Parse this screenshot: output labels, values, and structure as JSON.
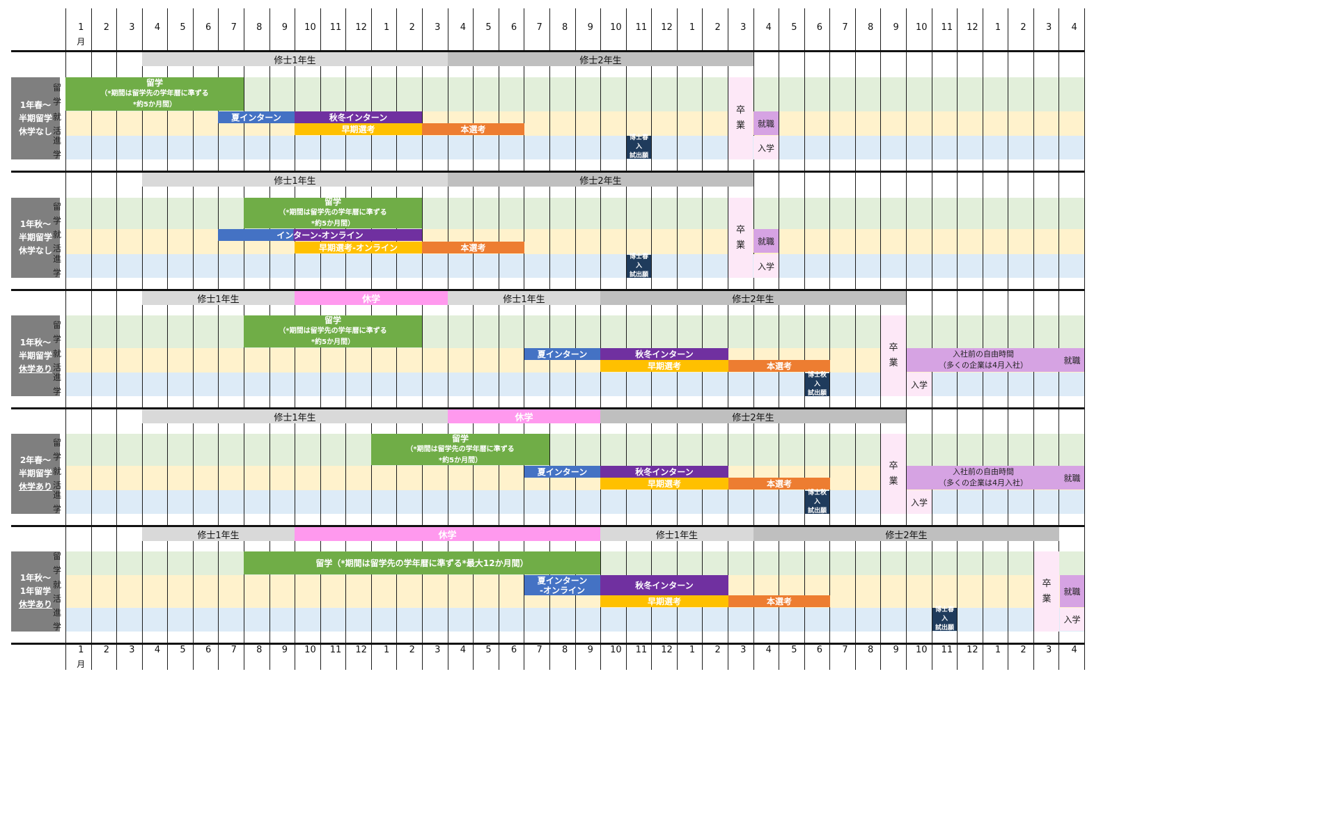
{
  "months": [
    "1",
    "2",
    "3",
    "4",
    "5",
    "6",
    "7",
    "8",
    "9",
    "10",
    "11",
    "12",
    "1",
    "2",
    "3",
    "4",
    "5",
    "6",
    "7",
    "8",
    "9",
    "10",
    "11",
    "12",
    "1",
    "2",
    "3",
    "4",
    "5",
    "6",
    "7",
    "8",
    "9",
    "10",
    "11",
    "12",
    "1",
    "2",
    "3",
    "4"
  ],
  "month_unit": "月",
  "categories": {
    "study_abroad": [
      "留",
      "学"
    ],
    "job_hunt": [
      "就",
      "活"
    ],
    "advance": [
      "進",
      "学"
    ]
  },
  "colors": {
    "study": "#70ad47",
    "summer_intern": "#4472c4",
    "autumn_intern": "#7030a0",
    "early_selection": "#ffc000",
    "main_selection": "#ed7d31",
    "doctoral_app": "#1f3b5c",
    "leave": "#ff99ee",
    "year_bar": "#d9d9d9",
    "year_bar_dark": "#bfbfbf",
    "band_green": "#e2efda",
    "band_yellow": "#fff2cc",
    "band_blue": "#ddebf7",
    "graduation": "#fde8f7",
    "employment": "#d6a3e3",
    "label_bg": "#7f7f7f"
  },
  "scenarios": [
    {
      "label": [
        "1年春～",
        "半期留学",
        "休学なし"
      ],
      "year_bars": [
        {
          "text": "修士1年生",
          "kind": "y"
        },
        {
          "text": "修士2年生",
          "kind": "y"
        }
      ],
      "study": {
        "title": "留学",
        "note1": "（*期間は留学先の学年暦に準ずる",
        "note2": "*約5か月間）"
      },
      "intern1": "夏インターン",
      "intern2": "秋冬インターン",
      "early": "早期選考",
      "main": "本選考",
      "doc": [
        "博士春入",
        "試出願"
      ],
      "grad": [
        "卒",
        "業"
      ],
      "emp": "就職",
      "enroll": "入学"
    },
    {
      "label": [
        "1年秋～",
        "半期留学",
        "休学なし"
      ],
      "year_bars": [
        {
          "text": "修士1年生",
          "kind": "y"
        },
        {
          "text": "修士2年生",
          "kind": "y"
        }
      ],
      "study": {
        "title": "留学",
        "note1": "（*期間は留学先の学年暦に準ずる",
        "note2": "*約5か月間）"
      },
      "intern1": "インターン-オンライン",
      "early": "早期選考-オンライン",
      "main": "本選考",
      "doc": [
        "博士春入",
        "試出願"
      ],
      "grad": [
        "卒",
        "業"
      ],
      "emp": "就職",
      "enroll": "入学"
    },
    {
      "label": [
        "1年秋～",
        "半期留学",
        "休学あり"
      ],
      "year_bars": [
        {
          "text": "修士1年生",
          "kind": "y"
        },
        {
          "text": "休学",
          "kind": "leave"
        },
        {
          "text": "修士1年生",
          "kind": "y"
        },
        {
          "text": "修士2年生",
          "kind": "y"
        }
      ],
      "study": {
        "title": "留学",
        "note1": "（*期間は留学先の学年暦に準ずる",
        "note2": "*約5か月間）"
      },
      "intern1": "夏インターン",
      "intern2": "秋冬インターン",
      "early": "早期選考",
      "main": "本選考",
      "doc": [
        "博士秋入",
        "試出願"
      ],
      "grad": [
        "卒",
        "業"
      ],
      "free": [
        "入社前の自由時間",
        "（多くの企業は4月入社）"
      ],
      "emp": "就職",
      "enroll": "入学"
    },
    {
      "label": [
        "2年春～",
        "半期留学",
        "休学あり"
      ],
      "year_bars": [
        {
          "text": "修士1年生",
          "kind": "y"
        },
        {
          "text": "休学",
          "kind": "leave"
        },
        {
          "text": "修士2年生",
          "kind": "y"
        }
      ],
      "study": {
        "title": "留学",
        "note1": "（*期間は留学先の学年暦に準ずる",
        "note2": "*約5か月間）"
      },
      "intern1": "夏インターン",
      "intern2": "秋冬インターン",
      "early": "早期選考",
      "main": "本選考",
      "doc": [
        "博士秋入",
        "試出願"
      ],
      "grad": [
        "卒",
        "業"
      ],
      "free": [
        "入社前の自由時間",
        "（多くの企業は4月入社）"
      ],
      "emp": "就職",
      "enroll": "入学"
    },
    {
      "label": [
        "1年秋～",
        "1年留学",
        "休学あり"
      ],
      "year_bars": [
        {
          "text": "修士1年生",
          "kind": "y"
        },
        {
          "text": "休学",
          "kind": "leave"
        },
        {
          "text": "修士1年生",
          "kind": "y"
        },
        {
          "text": "修士2年生",
          "kind": "y"
        }
      ],
      "study": {
        "title": "留学（*期間は留学先の学年暦に準ずる*最大12か月間）"
      },
      "intern1": [
        "夏インターン",
        "-オンライン"
      ],
      "intern2": "秋冬インターン",
      "early": "早期選考",
      "main": "本選考",
      "doc": [
        "博士春入",
        "試出願"
      ],
      "grad": [
        "卒",
        "業"
      ],
      "emp": "就職",
      "enroll": "入学"
    }
  ]
}
